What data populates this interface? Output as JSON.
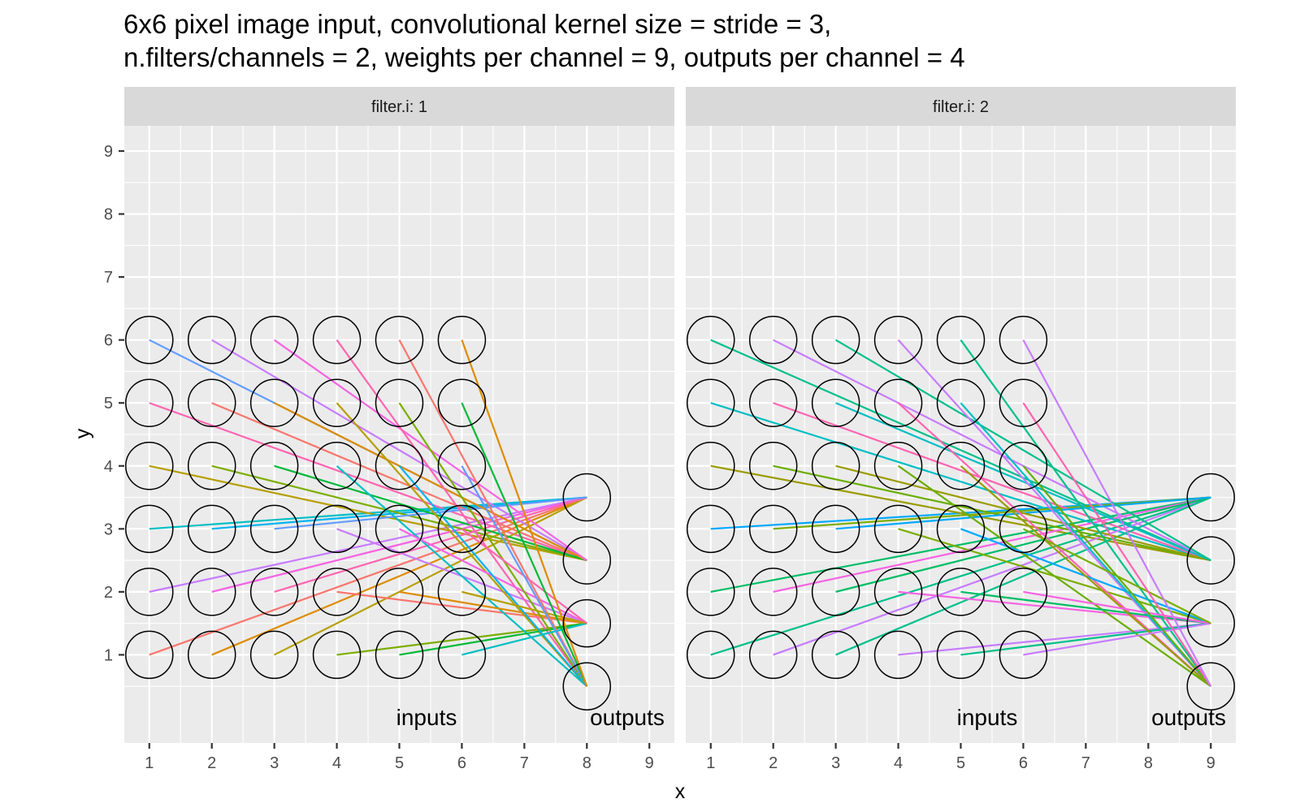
{
  "title_line1": "6x6 pixel image input, convolutional kernel size = stride = 3,",
  "title_line2": "n.filters/channels = 2, weights per channel = 9, outputs per channel = 4",
  "xlabel": "x",
  "ylabel": "y",
  "x_ticks": [
    "1",
    "2",
    "3",
    "4",
    "5",
    "6",
    "7",
    "8",
    "9"
  ],
  "y_ticks": [
    "1",
    "2",
    "3",
    "4",
    "5",
    "6",
    "7",
    "8",
    "9"
  ],
  "panels": [
    {
      "strip": "filter.i: 1",
      "inputs_label": "inputs",
      "outputs_label": "outputs"
    },
    {
      "strip": "filter.i: 2",
      "inputs_label": "inputs",
      "outputs_label": "outputs"
    }
  ],
  "colors": {
    "panel_bg": "#ebebeb",
    "strip_bg": "#d9d9d9",
    "grid": "#ffffff",
    "hue_palette": [
      "#f8766d",
      "#de8c00",
      "#b79f00",
      "#7cae00",
      "#00ba38",
      "#00c08b",
      "#00bfc4",
      "#00b4f0",
      "#619cff",
      "#c77cff",
      "#f564e3",
      "#ff64b0"
    ]
  },
  "chart_data": {
    "type": "scatter",
    "facet": "filter.i",
    "xlim": [
      0.6,
      9.4
    ],
    "ylim": [
      -0.4,
      9.4
    ],
    "x_breaks": [
      1,
      2,
      3,
      4,
      5,
      6,
      7,
      8,
      9
    ],
    "y_breaks": [
      1,
      2,
      3,
      4,
      5,
      6,
      7,
      8,
      9
    ],
    "input_grid": {
      "x": [
        1,
        2,
        3,
        4,
        5,
        6
      ],
      "y": [
        1,
        2,
        3,
        4,
        5,
        6
      ]
    },
    "kernel_size": 3,
    "stride": 3,
    "panels": [
      {
        "filter_i": 1,
        "output_x": 8,
        "output_y": [
          3.5,
          2.5,
          1.5,
          0.5
        ],
        "edge_palette": [
          "#f8766d",
          "#de8c00",
          "#b79f00",
          "#7cae00",
          "#00ba38",
          "#00bfc4",
          "#00b4f0",
          "#619cff",
          "#c77cff",
          "#f564e3",
          "#ff64b0"
        ]
      },
      {
        "filter_i": 2,
        "output_x": 9,
        "output_y": [
          3.5,
          2.5,
          1.5,
          0.5
        ],
        "edge_palette": [
          "#00c08b",
          "#7cae00",
          "#00bfc4",
          "#f564e3",
          "#9a9c00",
          "#c77cff",
          "#00a9ff",
          "#ff64b0",
          "#00be67",
          "#6aae00"
        ]
      }
    ]
  }
}
